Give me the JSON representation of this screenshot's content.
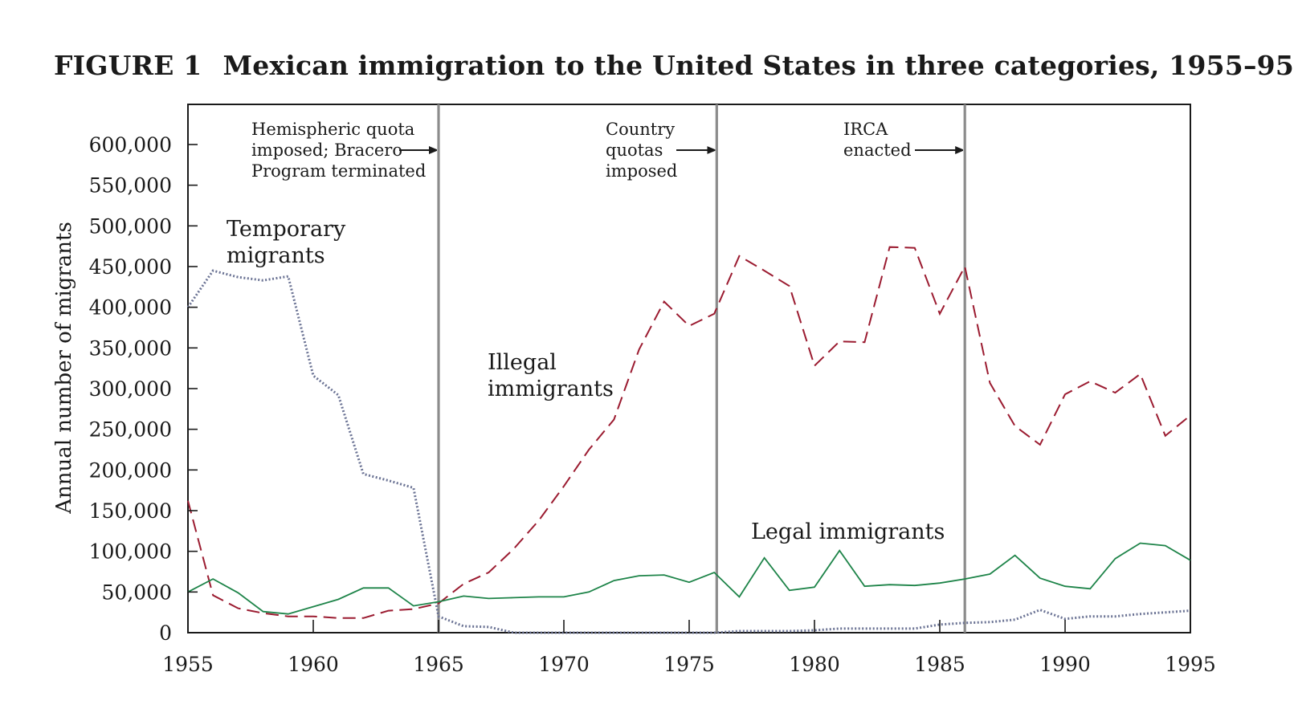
{
  "figure": {
    "number": "FIGURE 1",
    "title": "Mexican immigration to the United States in three categories, 1955–95"
  },
  "chart_data": {
    "type": "line",
    "ylabel": "Annual number of migrants",
    "xlim": [
      1955,
      1995
    ],
    "ylim": [
      0,
      650000
    ],
    "x_ticks": [
      1955,
      1960,
      1965,
      1970,
      1975,
      1980,
      1985,
      1990,
      1995
    ],
    "y_ticks": [
      0,
      50000,
      100000,
      150000,
      200000,
      250000,
      300000,
      350000,
      400000,
      450000,
      500000,
      550000,
      600000
    ],
    "y_tick_labels": [
      "0",
      "50,000",
      "100,000",
      "150,000",
      "200,000",
      "250,000",
      "300,000",
      "350,000",
      "400,000",
      "450,000",
      "500,000",
      "550,000",
      "600,000"
    ],
    "x": [
      1955,
      1956,
      1957,
      1958,
      1959,
      1960,
      1961,
      1962,
      1963,
      1964,
      1965,
      1966,
      1967,
      1968,
      1969,
      1970,
      1971,
      1972,
      1973,
      1974,
      1975,
      1976,
      1977,
      1978,
      1979,
      1980,
      1981,
      1982,
      1983,
      1984,
      1985,
      1986,
      1987,
      1988,
      1989,
      1990,
      1991,
      1992,
      1993,
      1994,
      1995
    ],
    "series": [
      {
        "name": "Temporary migrants",
        "label_lines": [
          "Temporary",
          "migrants"
        ],
        "style": "dotted",
        "color": "#6b7394",
        "values": [
          400000,
          445000,
          437000,
          433000,
          438000,
          316000,
          292000,
          195000,
          187000,
          178000,
          20000,
          8000,
          7000,
          0,
          0,
          0,
          0,
          0,
          0,
          0,
          0,
          0,
          2000,
          2000,
          2000,
          3000,
          5000,
          5000,
          5000,
          5000,
          10000,
          12000,
          13000,
          16000,
          28000,
          17000,
          20000,
          20000,
          23000,
          25000,
          27000
        ]
      },
      {
        "name": "Illegal immigrants",
        "label_lines": [
          "Illegal",
          "immigrants"
        ],
        "style": "dashed",
        "color": "#9b1b30",
        "values": [
          162000,
          46000,
          30000,
          24000,
          20000,
          20000,
          18000,
          18000,
          27000,
          29000,
          36000,
          60000,
          74000,
          103000,
          138000,
          180000,
          225000,
          262000,
          348000,
          407000,
          377000,
          392000,
          463000,
          445000,
          426000,
          328000,
          358000,
          357000,
          474000,
          473000,
          392000,
          450000,
          307000,
          254000,
          231000,
          293000,
          309000,
          295000,
          318000,
          242000,
          267000
        ]
      },
      {
        "name": "Legal immigrants",
        "label_lines": [
          "Legal immigrants"
        ],
        "style": "solid",
        "color": "#1e8449",
        "values": [
          50000,
          66000,
          49000,
          26000,
          23000,
          32000,
          41000,
          55000,
          55000,
          33000,
          38000,
          45000,
          42000,
          43000,
          44000,
          44000,
          50000,
          64000,
          70000,
          71000,
          62000,
          74000,
          44000,
          92000,
          52000,
          56000,
          101000,
          57000,
          59000,
          58000,
          61000,
          66000,
          72000,
          95000,
          67000,
          57000,
          54000,
          91000,
          110000,
          107000,
          89000
        ]
      }
    ],
    "events": [
      {
        "x": 1965,
        "label_lines": [
          "Hemispheric quota",
          "imposed; Bracero",
          "Program terminated"
        ]
      },
      {
        "x": 1976.1,
        "label_lines": [
          "Country",
          "quotas",
          "imposed"
        ]
      },
      {
        "x": 1986,
        "label_lines": [
          "IRCA",
          "enacted"
        ]
      }
    ],
    "grid": false,
    "legend": "inline labels"
  }
}
